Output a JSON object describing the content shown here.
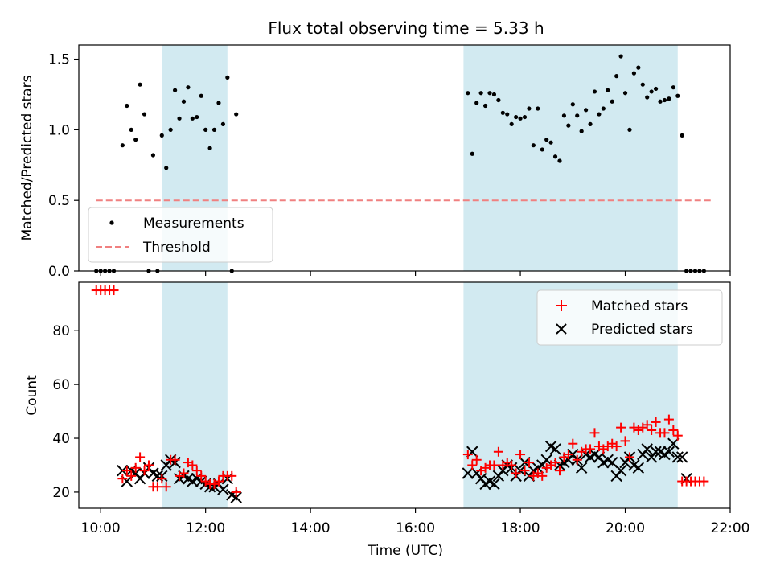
{
  "title": "Flux total observing time = 5.33 h",
  "colors": {
    "band": "#add8e6",
    "measurement": "#000000",
    "threshold": "#f08080",
    "matched": "#ff0000",
    "predicted": "#000000"
  },
  "chart_data": [
    {
      "type": "scatter",
      "ylabel": "Matched/Predicted stars",
      "ylim": [
        0,
        1.6
      ],
      "yticks": [
        0.0,
        0.5,
        1.0,
        1.5
      ],
      "ytick_labels": [
        "0.0",
        "0.5",
        "1.0",
        "1.5"
      ],
      "xlim": [
        "09:35",
        "22:00"
      ],
      "shaded_intervals": [
        [
          "11:10",
          "12:25"
        ],
        [
          "16:55",
          "21:00"
        ]
      ],
      "legend": {
        "position": "lower-left",
        "entries": [
          "Measurements",
          "Threshold"
        ]
      },
      "threshold": {
        "name": "Threshold",
        "value": 0.5,
        "x_range": [
          "09:55",
          "21:40"
        ]
      },
      "series": [
        {
          "name": "Measurements",
          "points": [
            [
              "09:55",
              0
            ],
            [
              "10:00",
              0
            ],
            [
              "10:05",
              0
            ],
            [
              "10:10",
              0
            ],
            [
              "10:15",
              0
            ],
            [
              "10:25",
              0.89
            ],
            [
              "10:30",
              1.17
            ],
            [
              "10:35",
              1.0
            ],
            [
              "10:40",
              0.93
            ],
            [
              "10:45",
              1.32
            ],
            [
              "10:50",
              1.11
            ],
            [
              "10:55",
              0
            ],
            [
              "11:00",
              0.82
            ],
            [
              "11:05",
              0
            ],
            [
              "11:10",
              0.96
            ],
            [
              "11:15",
              0.73
            ],
            [
              "11:20",
              1.0
            ],
            [
              "11:25",
              1.28
            ],
            [
              "11:30",
              1.08
            ],
            [
              "11:35",
              1.2
            ],
            [
              "11:40",
              1.3
            ],
            [
              "11:45",
              1.08
            ],
            [
              "11:50",
              1.09
            ],
            [
              "11:55",
              1.24
            ],
            [
              "12:00",
              1.0
            ],
            [
              "12:05",
              0.87
            ],
            [
              "12:10",
              1.0
            ],
            [
              "12:15",
              1.19
            ],
            [
              "12:20",
              1.04
            ],
            [
              "12:25",
              1.37
            ],
            [
              "12:30",
              0
            ],
            [
              "12:35",
              1.11
            ],
            [
              "17:00",
              1.26
            ],
            [
              "17:05",
              0.83
            ],
            [
              "17:10",
              1.19
            ],
            [
              "17:15",
              1.26
            ],
            [
              "17:20",
              1.17
            ],
            [
              "17:25",
              1.26
            ],
            [
              "17:30",
              1.25
            ],
            [
              "17:35",
              1.21
            ],
            [
              "17:40",
              1.12
            ],
            [
              "17:45",
              1.11
            ],
            [
              "17:50",
              1.04
            ],
            [
              "17:55",
              1.09
            ],
            [
              "18:00",
              1.08
            ],
            [
              "18:05",
              1.09
            ],
            [
              "18:10",
              1.15
            ],
            [
              "18:15",
              0.89
            ],
            [
              "18:20",
              1.15
            ],
            [
              "18:25",
              0.86
            ],
            [
              "18:30",
              0.93
            ],
            [
              "18:35",
              0.91
            ],
            [
              "18:40",
              0.81
            ],
            [
              "18:45",
              0.78
            ],
            [
              "18:50",
              1.1
            ],
            [
              "18:55",
              1.03
            ],
            [
              "19:00",
              1.18
            ],
            [
              "19:05",
              1.1
            ],
            [
              "19:10",
              0.99
            ],
            [
              "19:15",
              1.14
            ],
            [
              "19:20",
              1.04
            ],
            [
              "19:25",
              1.27
            ],
            [
              "19:30",
              1.11
            ],
            [
              "19:35",
              1.15
            ],
            [
              "19:40",
              1.28
            ],
            [
              "19:45",
              1.2
            ],
            [
              "19:50",
              1.38
            ],
            [
              "19:55",
              1.52
            ],
            [
              "20:00",
              1.26
            ],
            [
              "20:05",
              1.0
            ],
            [
              "20:10",
              1.4
            ],
            [
              "20:15",
              1.44
            ],
            [
              "20:20",
              1.32
            ],
            [
              "20:25",
              1.23
            ],
            [
              "20:30",
              1.27
            ],
            [
              "20:35",
              1.29
            ],
            [
              "20:40",
              1.2
            ],
            [
              "20:45",
              1.21
            ],
            [
              "20:50",
              1.22
            ],
            [
              "20:55",
              1.3
            ],
            [
              "21:00",
              1.24
            ],
            [
              "21:05",
              0.96
            ],
            [
              "21:10",
              0
            ],
            [
              "21:15",
              0
            ],
            [
              "21:20",
              0
            ],
            [
              "21:25",
              0
            ],
            [
              "21:30",
              0
            ]
          ]
        }
      ]
    },
    {
      "type": "scatter",
      "xlabel": "Time (UTC)",
      "ylabel": "Count",
      "ylim": [
        14,
        98
      ],
      "yticks": [
        20,
        40,
        60,
        80
      ],
      "ytick_labels": [
        "20",
        "40",
        "60",
        "80"
      ],
      "xlim": [
        "09:35",
        "22:00"
      ],
      "xticks": [
        "10:00",
        "12:00",
        "14:00",
        "16:00",
        "18:00",
        "20:00",
        "22:00"
      ],
      "shaded_intervals": [
        [
          "11:10",
          "12:25"
        ],
        [
          "16:55",
          "21:00"
        ]
      ],
      "legend": {
        "position": "top-right",
        "entries": [
          "Matched stars",
          "Predicted stars"
        ]
      },
      "series": [
        {
          "name": "Matched stars",
          "marker": "plus",
          "points": [
            [
              "09:55",
              95
            ],
            [
              "10:00",
              95
            ],
            [
              "10:05",
              95
            ],
            [
              "10:10",
              95
            ],
            [
              "10:15",
              95
            ],
            [
              "10:25",
              25
            ],
            [
              "10:30",
              28
            ],
            [
              "10:35",
              26
            ],
            [
              "10:40",
              29
            ],
            [
              "10:45",
              33
            ],
            [
              "10:50",
              28
            ],
            [
              "10:55",
              30
            ],
            [
              "11:00",
              22
            ],
            [
              "11:05",
              22
            ],
            [
              "11:10",
              25
            ],
            [
              "11:15",
              22
            ],
            [
              "11:20",
              32
            ],
            [
              "11:25",
              32
            ],
            [
              "11:30",
              26
            ],
            [
              "11:35",
              27
            ],
            [
              "11:40",
              31
            ],
            [
              "11:45",
              30
            ],
            [
              "11:50",
              28
            ],
            [
              "11:55",
              26
            ],
            [
              "12:00",
              24
            ],
            [
              "12:05",
              23
            ],
            [
              "12:10",
              23
            ],
            [
              "12:15",
              24
            ],
            [
              "12:20",
              26
            ],
            [
              "12:25",
              26
            ],
            [
              "12:30",
              26
            ],
            [
              "12:35",
              20
            ],
            [
              "17:00",
              34
            ],
            [
              "17:05",
              30
            ],
            [
              "17:10",
              32
            ],
            [
              "17:15",
              28
            ],
            [
              "17:20",
              29
            ],
            [
              "17:25",
              30
            ],
            [
              "17:30",
              30
            ],
            [
              "17:35",
              35
            ],
            [
              "17:40",
              30
            ],
            [
              "17:45",
              31
            ],
            [
              "17:50",
              30
            ],
            [
              "17:55",
              27
            ],
            [
              "18:00",
              34
            ],
            [
              "18:05",
              28
            ],
            [
              "18:10",
              31
            ],
            [
              "18:15",
              26
            ],
            [
              "18:20",
              27
            ],
            [
              "18:25",
              26
            ],
            [
              "18:30",
              29
            ],
            [
              "18:35",
              30
            ],
            [
              "18:40",
              31
            ],
            [
              "18:45",
              28
            ],
            [
              "18:50",
              33
            ],
            [
              "18:55",
              34
            ],
            [
              "19:00",
              38
            ],
            [
              "19:05",
              32
            ],
            [
              "19:10",
              35
            ],
            [
              "19:15",
              36
            ],
            [
              "19:20",
              36
            ],
            [
              "19:25",
              42
            ],
            [
              "19:30",
              37
            ],
            [
              "19:35",
              36
            ],
            [
              "19:40",
              37
            ],
            [
              "19:45",
              38
            ],
            [
              "19:50",
              37
            ],
            [
              "19:55",
              44
            ],
            [
              "20:00",
              39
            ],
            [
              "20:05",
              33
            ],
            [
              "20:10",
              44
            ],
            [
              "20:15",
              43
            ],
            [
              "20:20",
              44
            ],
            [
              "20:25",
              45
            ],
            [
              "20:30",
              43
            ],
            [
              "20:35",
              46
            ],
            [
              "20:40",
              42
            ],
            [
              "20:45",
              42
            ],
            [
              "20:50",
              47
            ],
            [
              "20:55",
              43
            ],
            [
              "21:00",
              41
            ],
            [
              "21:05",
              24
            ],
            [
              "21:10",
              24
            ],
            [
              "21:15",
              24
            ],
            [
              "21:20",
              24
            ],
            [
              "21:25",
              24
            ],
            [
              "21:30",
              24
            ]
          ]
        },
        {
          "name": "Predicted stars",
          "marker": "x",
          "points": [
            [
              "10:25",
              28
            ],
            [
              "10:30",
              24
            ],
            [
              "10:35",
              28
            ],
            [
              "10:40",
              27
            ],
            [
              "10:45",
              25
            ],
            [
              "10:50",
              27
            ],
            [
              "10:55",
              29
            ],
            [
              "11:00",
              27
            ],
            [
              "11:05",
              26
            ],
            [
              "11:10",
              26
            ],
            [
              "11:15",
              30
            ],
            [
              "11:20",
              32
            ],
            [
              "11:25",
              31
            ],
            [
              "11:30",
              25
            ],
            [
              "11:35",
              26
            ],
            [
              "11:40",
              25
            ],
            [
              "11:45",
              24
            ],
            [
              "11:50",
              25
            ],
            [
              "11:55",
              24
            ],
            [
              "12:00",
              23
            ],
            [
              "12:05",
              22
            ],
            [
              "12:10",
              22
            ],
            [
              "12:15",
              23
            ],
            [
              "12:20",
              21
            ],
            [
              "12:25",
              25
            ],
            [
              "12:30",
              19
            ],
            [
              "12:35",
              18
            ],
            [
              "17:00",
              27
            ],
            [
              "17:05",
              35
            ],
            [
              "17:10",
              27
            ],
            [
              "17:15",
              25
            ],
            [
              "17:20",
              23
            ],
            [
              "17:25",
              24
            ],
            [
              "17:30",
              23
            ],
            [
              "17:35",
              26
            ],
            [
              "17:40",
              28
            ],
            [
              "17:45",
              30
            ],
            [
              "17:50",
              29
            ],
            [
              "17:55",
              26
            ],
            [
              "18:00",
              28
            ],
            [
              "18:05",
              31
            ],
            [
              "18:10",
              26
            ],
            [
              "18:15",
              28
            ],
            [
              "18:20",
              29
            ],
            [
              "18:25",
              30
            ],
            [
              "18:30",
              32
            ],
            [
              "18:35",
              37
            ],
            [
              "18:40",
              36
            ],
            [
              "18:45",
              30
            ],
            [
              "18:50",
              31
            ],
            [
              "18:55",
              32
            ],
            [
              "19:00",
              34
            ],
            [
              "19:05",
              32
            ],
            [
              "19:10",
              29
            ],
            [
              "19:15",
              34
            ],
            [
              "19:20",
              33
            ],
            [
              "19:25",
              34
            ],
            [
              "19:30",
              33
            ],
            [
              "19:35",
              31
            ],
            [
              "19:40",
              32
            ],
            [
              "19:45",
              31
            ],
            [
              "19:50",
              26
            ],
            [
              "19:55",
              28
            ],
            [
              "20:00",
              31
            ],
            [
              "20:05",
              33
            ],
            [
              "20:10",
              30
            ],
            [
              "20:15",
              29
            ],
            [
              "20:20",
              34
            ],
            [
              "20:25",
              36
            ],
            [
              "20:30",
              33
            ],
            [
              "20:35",
              35
            ],
            [
              "20:40",
              35
            ],
            [
              "20:45",
              34
            ],
            [
              "20:50",
              35
            ],
            [
              "20:55",
              38
            ],
            [
              "21:00",
              33
            ],
            [
              "21:05",
              33
            ],
            [
              "21:10",
              25
            ]
          ]
        }
      ]
    }
  ]
}
